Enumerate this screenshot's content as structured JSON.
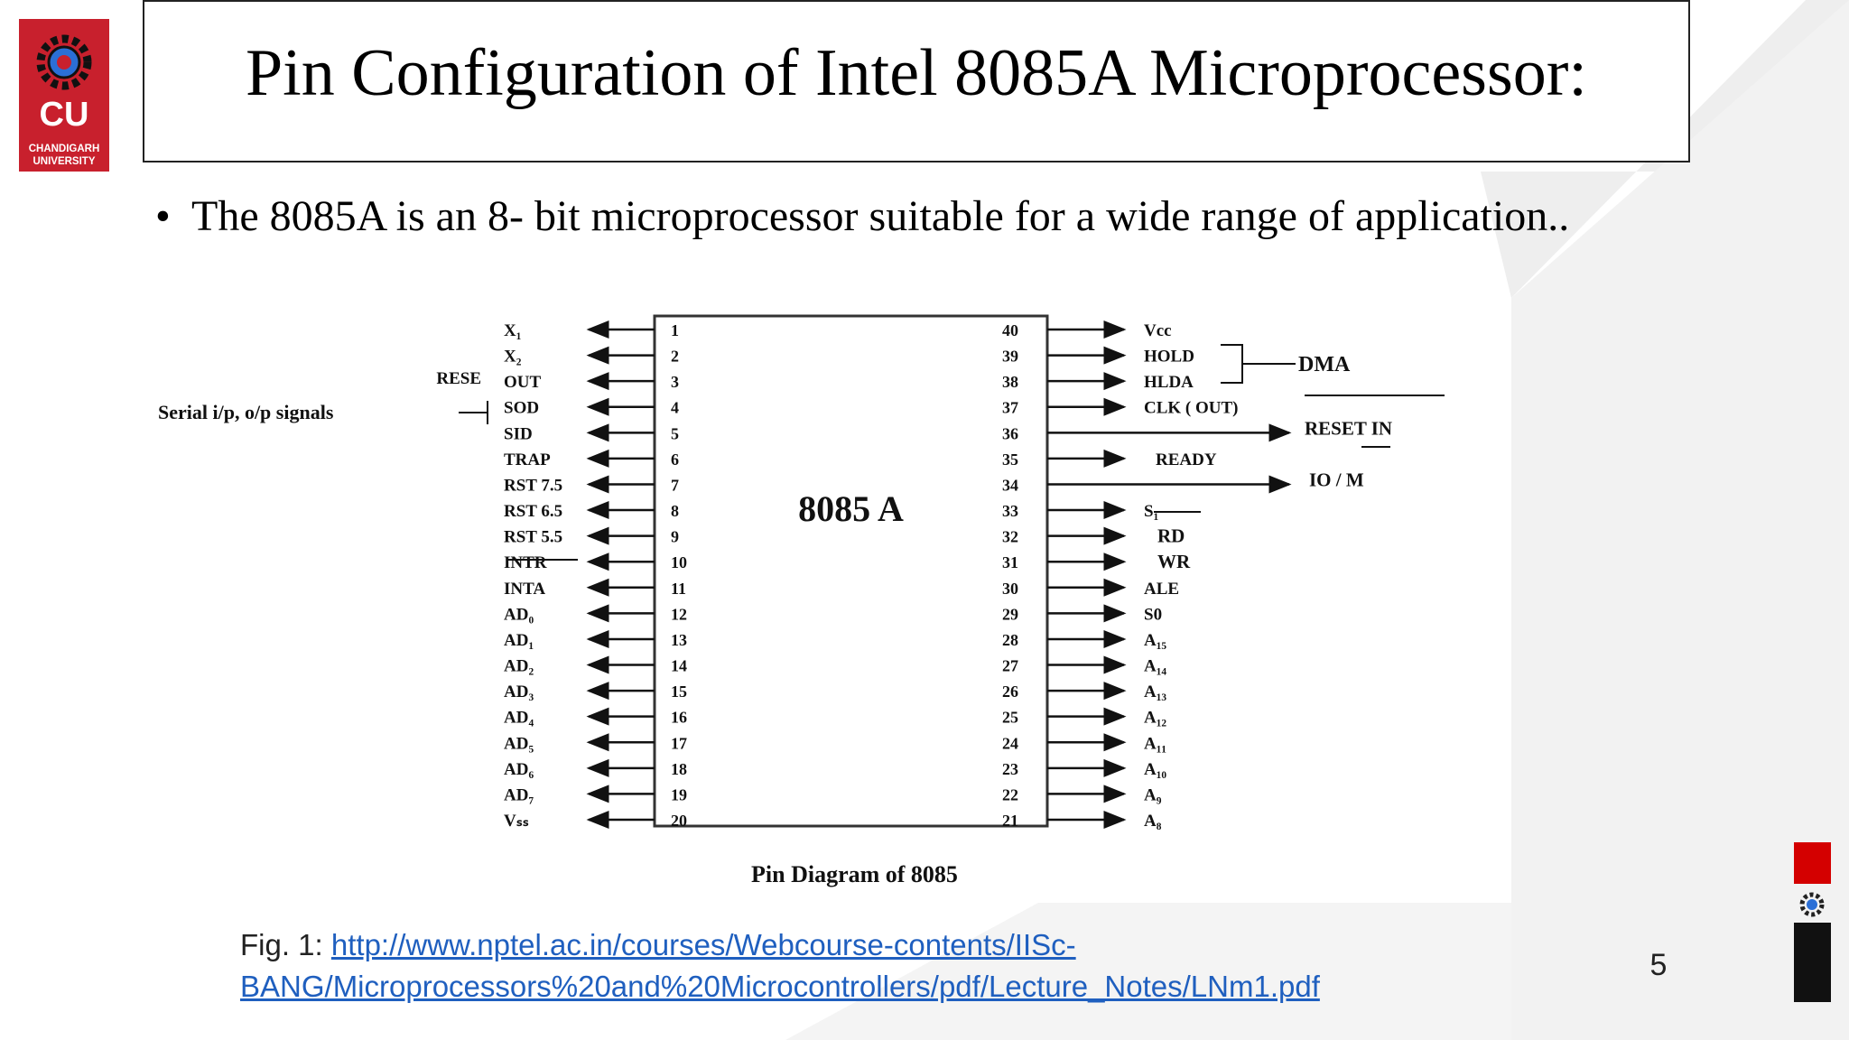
{
  "logo": {
    "initials": "CU",
    "name_line1": "CHANDIGARH",
    "name_line2": "UNIVERSITY"
  },
  "title": "Pin Configuration of Intel 8085A Microprocessor:",
  "bullet": "The 8085A is an 8- bit microprocessor suitable for a wide range of application..",
  "diagram": {
    "chip_label": "8085 A",
    "caption": "Pin Diagram of 8085",
    "serial_label": "Serial i/p, o/p signals",
    "dma_label": "DMA",
    "left_pins": [
      {
        "name": "X₁",
        "num": "1"
      },
      {
        "name": "X₂",
        "num": "2"
      },
      {
        "name": "OUT",
        "num": "3",
        "prefix": "RESE"
      },
      {
        "name": "SOD",
        "num": "4"
      },
      {
        "name": "SID",
        "num": "5"
      },
      {
        "name": "TRAP",
        "num": "6"
      },
      {
        "name": "RST 7.5",
        "num": "7"
      },
      {
        "name": "RST 6.5",
        "num": "8"
      },
      {
        "name": "RST 5.5",
        "num": "9"
      },
      {
        "name": "INTR",
        "num": "10"
      },
      {
        "name": "INTA",
        "num": "11"
      },
      {
        "name": "AD₀",
        "num": "12"
      },
      {
        "name": "AD₁",
        "num": "13"
      },
      {
        "name": "AD₂",
        "num": "14"
      },
      {
        "name": "AD₃",
        "num": "15"
      },
      {
        "name": "AD₄",
        "num": "16"
      },
      {
        "name": "AD₅",
        "num": "17"
      },
      {
        "name": "AD₆",
        "num": "18"
      },
      {
        "name": "AD₇",
        "num": "19"
      },
      {
        "name": "Vₛₛ",
        "num": "20"
      }
    ],
    "right_pins": [
      {
        "name": "Vcc",
        "num": "40"
      },
      {
        "name": "HOLD",
        "num": "39"
      },
      {
        "name": "HLDA",
        "num": "38"
      },
      {
        "name": "CLK ( OUT)",
        "num": "37"
      },
      {
        "name": "RESET IN",
        "num": "36"
      },
      {
        "name": "READY",
        "num": "35"
      },
      {
        "name": "IO / M",
        "num": "34"
      },
      {
        "name": "S₁",
        "num": "33"
      },
      {
        "name": "RD",
        "num": "32"
      },
      {
        "name": "WR",
        "num": "31"
      },
      {
        "name": "ALE",
        "num": "30"
      },
      {
        "name": "S0",
        "num": "29"
      },
      {
        "name": "A₁₅",
        "num": "28"
      },
      {
        "name": "A₁₄",
        "num": "27"
      },
      {
        "name": "A₁₃",
        "num": "26"
      },
      {
        "name": "A₁₂",
        "num": "25"
      },
      {
        "name": "A₁₁",
        "num": "24"
      },
      {
        "name": "A₁₀",
        "num": "23"
      },
      {
        "name": "A₉",
        "num": "22"
      },
      {
        "name": "A₈",
        "num": "21"
      }
    ]
  },
  "figure_caption": {
    "prefix": "Fig. 1: ",
    "link_line1": "http://www.nptel.ac.in/courses/Webcourse-contents/IISc-",
    "link_line2": "BANG/Microprocessors%20and%20Microcontrollers/pdf/Lecture_Notes/LNm1.pdf"
  },
  "page_number": "5",
  "colors": {
    "brand_red": "#c8202d",
    "link_blue": "#1f5fbf",
    "side_red": "#d40000"
  }
}
